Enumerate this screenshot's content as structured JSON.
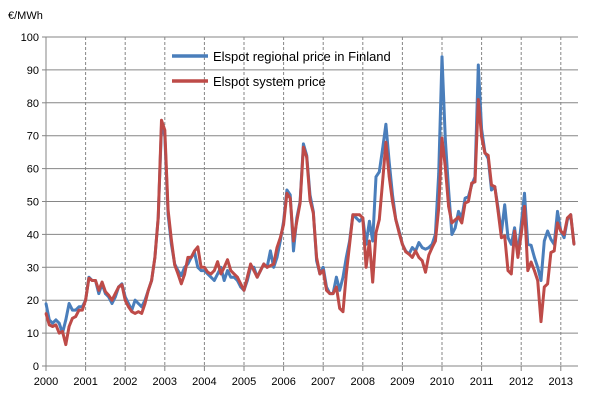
{
  "chart_data": {
    "type": "line",
    "title": "",
    "ylabel": "€/MWh",
    "xlabel": "",
    "ylim": [
      0,
      100
    ],
    "xlim": [
      "2000-01",
      "2013-05"
    ],
    "y_ticks": [
      "0",
      "10",
      "20",
      "30",
      "40",
      "50",
      "60",
      "70",
      "80",
      "90",
      "100"
    ],
    "x_ticks": [
      "2000",
      "2001",
      "2002",
      "2003",
      "2004",
      "2005",
      "2006",
      "2007",
      "2008",
      "2009",
      "2010",
      "2011",
      "2012",
      "2013"
    ],
    "grid": {
      "horizontal": "solid",
      "vertical": "dashed"
    },
    "legend_position": "top-center",
    "x_start": "2000-01",
    "x_frequency": "monthly",
    "series": [
      {
        "name": "Elspot regional price in Finland",
        "color": "#4a7ebb",
        "values": [
          19,
          14,
          13,
          14,
          13,
          10,
          14,
          19,
          17,
          17,
          18,
          18,
          20,
          27,
          26,
          26,
          22,
          25,
          22,
          21,
          19,
          21,
          24,
          25,
          21,
          19,
          17,
          20,
          19,
          18,
          20,
          23,
          26,
          33,
          45,
          73,
          70,
          46,
          37,
          31,
          29,
          27.5,
          30,
          31,
          33,
          34.5,
          30,
          29,
          29,
          28,
          27,
          26,
          28,
          30,
          26,
          29,
          27,
          27,
          26,
          24,
          23,
          26,
          30,
          30,
          27,
          29,
          31,
          30,
          35,
          30,
          33,
          38,
          44,
          53.5,
          52,
          35,
          45,
          50,
          67.5,
          64,
          52,
          47,
          32,
          28,
          30,
          24,
          22,
          22,
          27,
          23,
          27,
          33,
          38,
          46,
          45,
          44,
          45,
          37,
          44,
          38,
          57.5,
          59,
          66,
          73.5,
          62,
          52,
          44.5,
          41,
          37,
          35,
          34,
          36,
          35,
          37.5,
          36,
          35.5,
          36,
          37,
          40,
          58.5,
          94,
          69,
          53.5,
          40,
          42,
          47,
          45,
          51,
          51.5,
          55,
          57.5,
          91.5,
          72,
          65,
          63,
          53.5,
          54.5,
          48,
          40.5,
          49,
          39,
          37,
          42,
          34,
          43,
          52.5,
          37,
          36.7,
          33,
          30,
          26,
          38,
          41,
          38.5,
          37,
          47,
          41,
          39,
          44.5,
          46,
          37
        ]
      },
      {
        "name": "Elspot system price",
        "color": "#be4b48",
        "values": [
          16,
          12.5,
          12,
          12.5,
          10,
          10.5,
          6.5,
          12,
          14.5,
          15,
          17,
          17,
          20,
          26.7,
          26,
          26,
          23,
          25.5,
          22.6,
          21.5,
          20,
          22,
          24,
          24.7,
          20,
          18,
          16.5,
          16,
          16.5,
          16,
          19,
          23,
          26,
          33,
          45,
          74.7,
          71.7,
          47.4,
          38.3,
          30.7,
          28,
          25,
          27.9,
          33,
          33,
          35,
          36.2,
          30,
          30,
          28.5,
          28,
          29,
          31.7,
          28,
          30,
          32.3,
          29,
          28,
          27,
          25,
          23,
          27,
          31,
          29,
          27,
          29,
          31,
          30,
          30.5,
          31,
          36,
          39,
          43,
          52.5,
          51,
          38,
          44,
          49.5,
          66.5,
          63.5,
          50.5,
          46.5,
          33,
          28,
          29,
          23,
          22,
          22,
          24,
          17.5,
          16.5,
          28,
          37,
          46,
          46,
          46,
          45,
          30,
          38,
          25.5,
          40.5,
          44.5,
          56,
          68,
          57.5,
          50,
          44.5,
          40.5,
          37,
          34.7,
          34,
          33,
          35,
          33,
          32,
          28.5,
          33.7,
          36,
          38,
          48,
          69.3,
          60.5,
          48.5,
          43.5,
          44.4,
          45.3,
          43.5,
          49.5,
          50,
          55.6,
          56,
          81,
          69.7,
          64.7,
          64,
          55,
          54.5,
          47,
          39,
          39.5,
          29,
          28,
          41,
          33,
          40,
          48.5,
          29,
          31.6,
          29,
          26,
          13.5,
          24,
          25,
          34.5,
          35,
          43.5,
          41,
          40,
          45,
          46,
          37
        ]
      }
    ]
  }
}
